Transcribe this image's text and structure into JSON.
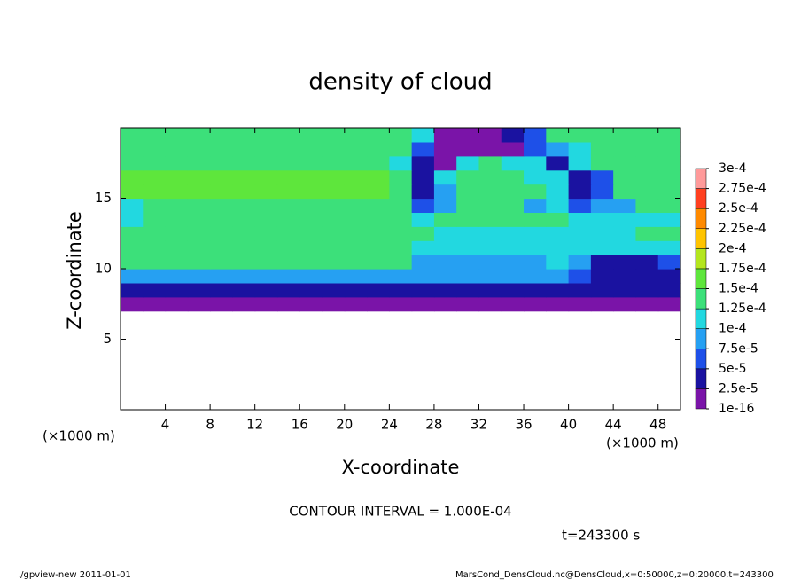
{
  "chart_data": {
    "type": "heatmap",
    "title": "density of cloud",
    "x_label": "X-coordinate",
    "y_label": "Z-coordinate",
    "x_unit": "(×1000 m)",
    "y_unit": "(×1000 m)",
    "contour_interval": "CONTOUR INTERVAL = 1.000E-04",
    "time_label": "t=243300 s",
    "footer_left": "./gpview-new  2011-01-01",
    "footer_right": "MarsCond_DensCloud.nc@DensCloud,x=0:50000,z=0:20000,t=243300",
    "xlim": [
      0,
      50
    ],
    "ylim": [
      0,
      20
    ],
    "xticks": [
      4,
      8,
      12,
      16,
      20,
      24,
      28,
      32,
      36,
      40,
      44,
      48
    ],
    "yticks": [
      5,
      10,
      15
    ],
    "x": [
      1,
      3,
      5,
      7,
      9,
      11,
      13,
      15,
      17,
      19,
      21,
      23,
      25,
      27,
      29,
      31,
      33,
      35,
      37,
      39,
      41,
      43,
      45,
      47,
      49
    ],
    "z": [
      7.5,
      8.5,
      9.5,
      10.5,
      11.5,
      12.5,
      13.5,
      14.5,
      15.5,
      16.5,
      17.5,
      18.5,
      19.5
    ],
    "values": [
      [
        1e-05,
        1e-05,
        1e-05,
        1e-05,
        1e-05,
        1e-05,
        1e-05,
        1e-05,
        1e-05,
        1e-05,
        1e-05,
        1e-05,
        1e-05,
        1e-05,
        1e-05,
        1e-05,
        1e-05,
        1e-05,
        1e-05,
        1e-05,
        1e-05,
        1e-05,
        1e-05,
        1e-05,
        1e-05
      ],
      [
        4.5e-05,
        4.5e-05,
        4.5e-05,
        4.5e-05,
        4.5e-05,
        4.5e-05,
        4.5e-05,
        4.5e-05,
        4.5e-05,
        4.5e-05,
        4.5e-05,
        4.5e-05,
        4.5e-05,
        4.5e-05,
        4.5e-05,
        4.5e-05,
        4.5e-05,
        4.5e-05,
        4.5e-05,
        4.5e-05,
        4e-05,
        4e-05,
        4e-05,
        4e-05,
        4e-05
      ],
      [
        9e-05,
        9e-05,
        9e-05,
        9e-05,
        9e-05,
        9e-05,
        9e-05,
        9e-05,
        9e-05,
        9e-05,
        9e-05,
        9e-05,
        9e-05,
        8e-05,
        8e-05,
        8e-05,
        8e-05,
        8e-05,
        8e-05,
        8e-05,
        6e-05,
        3.5e-05,
        3.5e-05,
        3.5e-05,
        3.5e-05
      ],
      [
        0.00013,
        0.00013,
        0.00013,
        0.00013,
        0.00013,
        0.00013,
        0.00013,
        0.00013,
        0.00013,
        0.00013,
        0.00013,
        0.00013,
        0.00013,
        9.5e-05,
        9.5e-05,
        9.5e-05,
        9.5e-05,
        9.5e-05,
        9.5e-05,
        0.00011,
        9e-05,
        4e-05,
        4e-05,
        4e-05,
        7e-05
      ],
      [
        0.00014,
        0.00014,
        0.00014,
        0.00014,
        0.00014,
        0.00014,
        0.00014,
        0.00014,
        0.00014,
        0.00014,
        0.00014,
        0.00014,
        0.00014,
        0.00011,
        0.00011,
        0.00011,
        0.00011,
        0.00011,
        0.00011,
        0.00011,
        0.000105,
        0.000105,
        0.000105,
        0.000105,
        0.000105
      ],
      [
        0.000142,
        0.000142,
        0.000142,
        0.000142,
        0.000142,
        0.000142,
        0.000142,
        0.000142,
        0.000142,
        0.000142,
        0.000142,
        0.000142,
        0.000142,
        0.000142,
        0.00012,
        0.00012,
        0.00012,
        0.00012,
        0.00012,
        0.00012,
        0.00012,
        0.00012,
        0.00012,
        0.00013,
        0.00013
      ],
      [
        0.00011,
        0.000145,
        0.000145,
        0.000145,
        0.000145,
        0.000145,
        0.000145,
        0.000145,
        0.000145,
        0.000145,
        0.000145,
        0.000145,
        0.000145,
        0.000105,
        0.000125,
        0.000125,
        0.000125,
        0.000125,
        0.000125,
        0.000125,
        0.00011,
        0.00011,
        0.00011,
        0.00011,
        0.00011
      ],
      [
        0.00011,
        0.000148,
        0.000148,
        0.000148,
        0.000148,
        0.000148,
        0.000148,
        0.000148,
        0.000148,
        0.000148,
        0.000148,
        0.000148,
        0.000148,
        6e-05,
        9e-05,
        0.00013,
        0.00013,
        0.00013,
        8e-05,
        0.00012,
        6e-05,
        9e-05,
        9e-05,
        0.000135,
        0.000135
      ],
      [
        0.00015,
        0.00015,
        0.00015,
        0.00015,
        0.00015,
        0.00015,
        0.00015,
        0.00015,
        0.00015,
        0.00015,
        0.00015,
        0.00015,
        0.00013,
        4e-05,
        8e-05,
        0.00013,
        0.00013,
        0.00013,
        0.00013,
        0.00012,
        3e-05,
        5e-05,
        0.00014,
        0.00014,
        0.00014
      ],
      [
        0.00015,
        0.00015,
        0.00015,
        0.00015,
        0.00015,
        0.00015,
        0.00015,
        0.00015,
        0.00015,
        0.00015,
        0.00015,
        0.00015,
        0.00014,
        3e-05,
        0.0001,
        0.000135,
        0.000135,
        0.000135,
        0.00012,
        0.00011,
        4e-05,
        6e-05,
        0.000145,
        0.000145,
        0.000145
      ],
      [
        0.000148,
        0.000148,
        0.000148,
        0.000148,
        0.000148,
        0.000148,
        0.000148,
        0.000148,
        0.000148,
        0.000148,
        0.000148,
        0.000148,
        0.00012,
        3e-05,
        2e-05,
        0.0001,
        0.00013,
        0.00012,
        0.0001,
        3e-05,
        0.00011,
        0.00014,
        0.00014,
        0.00014,
        0.00014
      ],
      [
        0.000145,
        0.000145,
        0.000145,
        0.000145,
        0.000145,
        0.000145,
        0.000145,
        0.000145,
        0.000145,
        0.000145,
        0.000145,
        0.000145,
        0.00013,
        7e-05,
        1.5e-05,
        1.5e-05,
        1.5e-05,
        2e-05,
        6e-05,
        9e-05,
        0.00012,
        0.000135,
        0.000135,
        0.000135,
        0.000135
      ],
      [
        0.00014,
        0.00014,
        0.00014,
        0.00014,
        0.00014,
        0.00014,
        0.00014,
        0.00014,
        0.00014,
        0.00014,
        0.00014,
        0.00014,
        0.00014,
        0.00012,
        2e-05,
        2e-05,
        2e-05,
        4e-05,
        7e-05,
        0.000135,
        0.000135,
        0.000135,
        0.000135,
        0.000135,
        0.000135
      ]
    ],
    "colorbar": {
      "levels": [
        {
          "value": 1e-16,
          "label": "1e-16"
        },
        {
          "value": 2.5e-05,
          "label": "2.5e-5"
        },
        {
          "value": 5e-05,
          "label": "5e-5"
        },
        {
          "value": 7.5e-05,
          "label": "7.5e-5"
        },
        {
          "value": 0.0001,
          "label": "1e-4"
        },
        {
          "value": 0.000125,
          "label": "1.25e-4"
        },
        {
          "value": 0.00015,
          "label": "1.5e-4"
        },
        {
          "value": 0.000175,
          "label": "1.75e-4"
        },
        {
          "value": 0.0002,
          "label": "2e-4"
        },
        {
          "value": 0.000225,
          "label": "2.25e-4"
        },
        {
          "value": 0.00025,
          "label": "2.5e-4"
        },
        {
          "value": 0.000275,
          "label": "2.75e-4"
        },
        {
          "value": 0.0003,
          "label": "3e-4"
        }
      ],
      "colors": [
        "#7a14a8",
        "#1a12a0",
        "#1e50e8",
        "#26a0f2",
        "#22d8e0",
        "#3ce07a",
        "#5ee63c",
        "#b4e61e",
        "#ffc400",
        "#ff8a00",
        "#ff4020",
        "#ff9a9a"
      ]
    }
  }
}
